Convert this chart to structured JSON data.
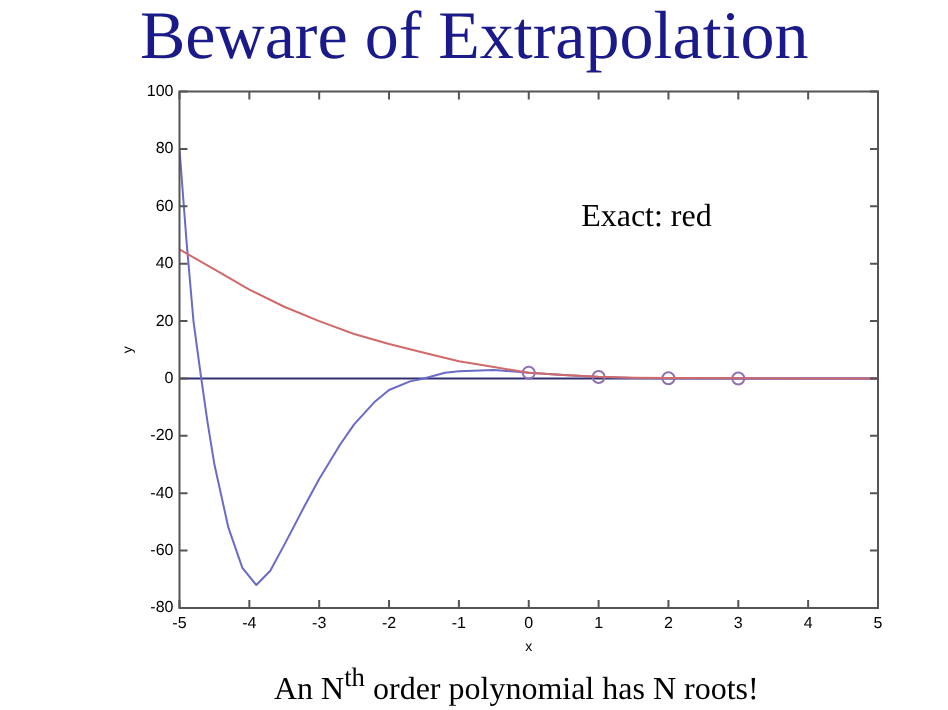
{
  "chart_data": {
    "type": "line",
    "title": "Beware of Extrapolation",
    "xlabel": "x",
    "ylabel": "y",
    "annotations": [
      "Exact: red",
      "An N$^{th}$ order polynomial has N roots!"
    ],
    "xlim": [
      -5,
      5
    ],
    "xticks": [
      -5,
      -4,
      -3,
      -2,
      -1,
      0,
      1,
      2,
      3,
      4,
      5
    ],
    "ylim": [
      -80,
      100
    ],
    "yticks": [
      -80,
      -60,
      -40,
      -20,
      0,
      20,
      40,
      60,
      80,
      100
    ],
    "grid": false,
    "legend": false,
    "line_style": "solid",
    "marker": "none",
    "ref_lines": [
      {
        "axis": "y",
        "value": 0,
        "color": "#303070"
      }
    ],
    "series": [
      {
        "color": "#d06a6a",
        "x": [
          -5,
          -4.5,
          -4,
          -3.5,
          -3,
          -2.5,
          -2,
          -1.5,
          -1,
          -0.5,
          0,
          0.5,
          1,
          1.5,
          2,
          3,
          4,
          5
        ],
        "values": [
          45,
          38,
          31,
          25,
          20,
          15.5,
          12,
          9,
          6,
          4,
          2,
          1.2,
          0.6,
          0.3,
          0.2,
          0.1,
          0,
          0
        ]
      },
      {
        "color": "#6a6ac8",
        "x": [
          -5,
          -4.9,
          -4.8,
          -4.7,
          -4.6,
          -4.5,
          -4.3,
          -4.1,
          -3.9,
          -3.7,
          -3.5,
          -3.2,
          -3,
          -2.7,
          -2.5,
          -2.2,
          -2,
          -1.7,
          -1.5,
          -1.2,
          -1,
          -0.5,
          0,
          0.5,
          1,
          1.5,
          2,
          3,
          4,
          5
        ],
        "values": [
          80,
          48,
          20,
          2,
          -15,
          -30,
          -52,
          -66,
          -72,
          -67,
          -58,
          -44,
          -35,
          -23,
          -16,
          -8,
          -4,
          -1,
          0,
          2,
          2.5,
          3,
          2,
          1.2,
          0.5,
          0.2,
          0.1,
          0,
          0,
          0
        ]
      },
      {
        "type": "scatter",
        "marker": "circle",
        "color": "#9070b0",
        "x": [
          0,
          1,
          2,
          3
        ],
        "values": [
          2,
          0.5,
          0.1,
          0
        ]
      }
    ]
  }
}
